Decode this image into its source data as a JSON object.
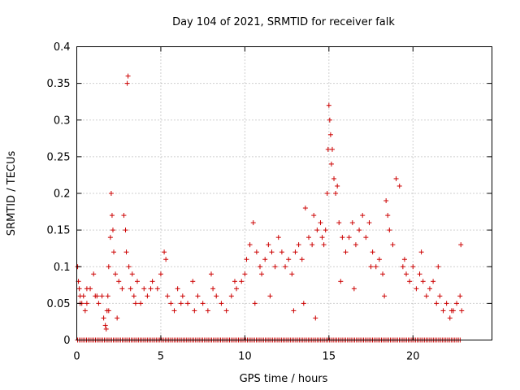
{
  "chart_data": {
    "type": "scatter",
    "title": "Day 104 of 2021, SRMTID for receiver falk",
    "xlabel": "GPS time / hours",
    "ylabel": "SRMTID / TECUs",
    "xlim": [
      0,
      24.7
    ],
    "ylim": [
      0,
      0.4
    ],
    "x_ticks": [
      0,
      5,
      10,
      15,
      20
    ],
    "x_tick_labels": [
      "0",
      "5",
      "10",
      "15",
      "20"
    ],
    "y_ticks": [
      0,
      0.05,
      0.1,
      0.15,
      0.2,
      0.25,
      0.3,
      0.35,
      0.4
    ],
    "y_tick_labels": [
      "0",
      "0.05",
      "0.1",
      "0.15",
      "0.2",
      "0.25",
      "0.3",
      "0.35",
      "0.4"
    ],
    "grid": true,
    "marker": "+",
    "marker_color": "#cc0000",
    "series": [
      {
        "name": "SRMTID",
        "x": [
          0.05,
          0.1,
          0.15,
          0.2,
          0.3,
          0.4,
          0.5,
          0.6,
          0.8,
          1.0,
          1.1,
          1.3,
          1.5,
          1.6,
          1.7,
          1.75,
          1.8,
          1.85,
          1.9,
          2.0,
          2.05,
          2.1,
          2.15,
          2.2,
          2.3,
          2.5,
          2.7,
          2.8,
          2.9,
          2.95,
          3.0,
          3.05,
          3.1,
          3.2,
          3.3,
          3.4,
          3.6,
          3.8,
          4.0,
          4.2,
          4.5,
          4.8,
          5.0,
          5.2,
          5.3,
          5.4,
          5.6,
          5.8,
          6.0,
          6.3,
          6.6,
          6.9,
          7.2,
          7.5,
          7.8,
          8.0,
          8.1,
          8.3,
          8.6,
          8.9,
          9.2,
          9.5,
          9.8,
          10.0,
          10.1,
          10.3,
          10.5,
          10.7,
          10.9,
          11.0,
          11.2,
          11.4,
          11.6,
          11.8,
          12.0,
          12.2,
          12.4,
          12.6,
          12.8,
          13.0,
          13.2,
          13.4,
          13.6,
          13.8,
          14.0,
          14.1,
          14.3,
          14.5,
          14.6,
          14.7,
          14.8,
          14.9,
          14.95,
          15.0,
          15.05,
          15.1,
          15.15,
          15.2,
          15.3,
          15.4,
          15.5,
          15.6,
          15.8,
          16.0,
          16.2,
          16.4,
          16.6,
          16.8,
          17.0,
          17.2,
          17.4,
          17.6,
          17.8,
          18.0,
          18.2,
          18.4,
          18.5,
          18.6,
          18.8,
          19.0,
          19.2,
          19.4,
          19.6,
          19.8,
          20.0,
          20.2,
          20.4,
          20.6,
          20.8,
          21.0,
          21.2,
          21.4,
          21.6,
          21.8,
          22.0,
          22.2,
          22.4,
          22.6,
          22.8,
          22.9,
          0.2,
          0.6,
          1.2,
          1.9,
          2.4,
          3.5,
          4.4,
          6.2,
          7.0,
          9.4,
          10.6,
          11.5,
          12.9,
          13.5,
          14.2,
          15.7,
          16.5,
          17.5,
          18.3,
          19.5,
          20.5,
          21.5,
          22.3,
          22.85
        ],
        "y": [
          0.1,
          0.08,
          0.07,
          0.06,
          0.05,
          0.06,
          0.04,
          0.05,
          0.07,
          0.09,
          0.06,
          0.05,
          0.06,
          0.03,
          0.02,
          0.015,
          0.04,
          0.06,
          0.1,
          0.14,
          0.2,
          0.17,
          0.15,
          0.12,
          0.09,
          0.08,
          0.07,
          0.17,
          0.15,
          0.12,
          0.35,
          0.36,
          0.1,
          0.07,
          0.09,
          0.06,
          0.08,
          0.05,
          0.07,
          0.06,
          0.08,
          0.07,
          0.09,
          0.12,
          0.11,
          0.06,
          0.05,
          0.04,
          0.07,
          0.06,
          0.05,
          0.08,
          0.06,
          0.05,
          0.04,
          0.09,
          0.07,
          0.06,
          0.05,
          0.04,
          0.06,
          0.07,
          0.08,
          0.09,
          0.11,
          0.13,
          0.16,
          0.12,
          0.1,
          0.09,
          0.11,
          0.13,
          0.12,
          0.1,
          0.14,
          0.12,
          0.1,
          0.11,
          0.09,
          0.12,
          0.13,
          0.11,
          0.18,
          0.14,
          0.13,
          0.17,
          0.15,
          0.16,
          0.14,
          0.13,
          0.15,
          0.2,
          0.26,
          0.32,
          0.3,
          0.28,
          0.24,
          0.26,
          0.22,
          0.2,
          0.21,
          0.16,
          0.14,
          0.12,
          0.14,
          0.16,
          0.13,
          0.15,
          0.17,
          0.14,
          0.16,
          0.12,
          0.1,
          0.11,
          0.09,
          0.19,
          0.17,
          0.15,
          0.13,
          0.22,
          0.21,
          0.1,
          0.09,
          0.08,
          0.1,
          0.07,
          0.09,
          0.08,
          0.06,
          0.07,
          0.08,
          0.05,
          0.06,
          0.04,
          0.05,
          0.03,
          0.04,
          0.05,
          0.06,
          0.04,
          0.05,
          0.07,
          0.06,
          0.04,
          0.03,
          0.05,
          0.07,
          0.05,
          0.04,
          0.08,
          0.05,
          0.06,
          0.04,
          0.05,
          0.03,
          0.08,
          0.07,
          0.1,
          0.06,
          0.11,
          0.12,
          0.1,
          0.04,
          0.13
        ],
        "baseline_y": 0
      }
    ]
  }
}
